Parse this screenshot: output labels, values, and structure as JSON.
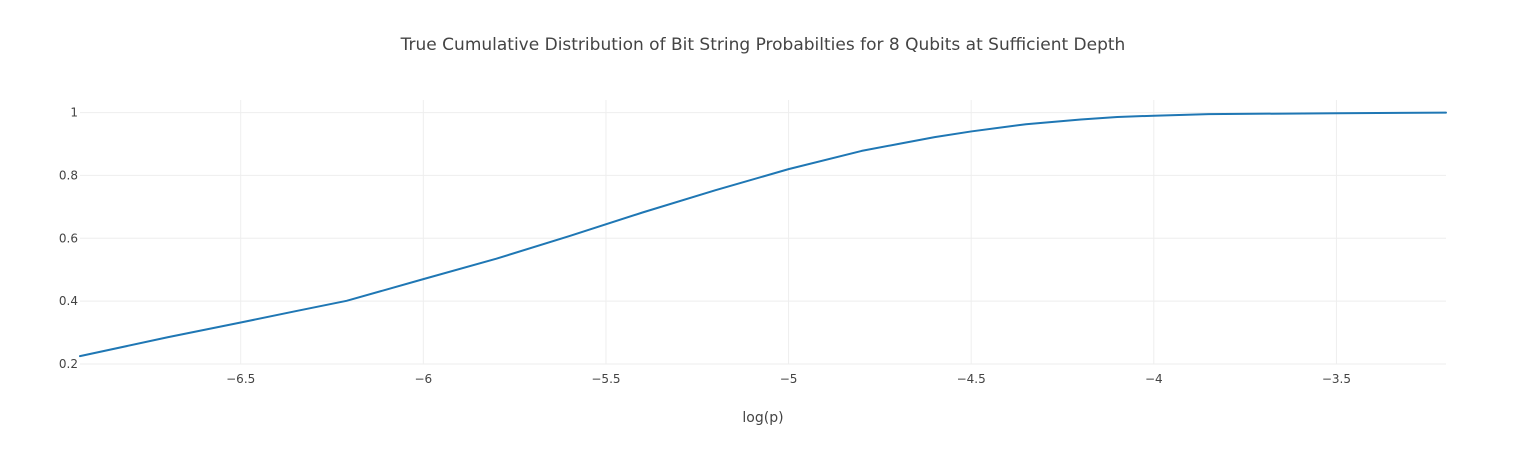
{
  "chart_data": {
    "type": "line",
    "title": "True Cumulative Distribution of Bit String Probabilties for 8 Qubits at Sufficient Depth",
    "xlabel": "log(p)",
    "ylabel": "",
    "xlim": [
      -6.94,
      -3.2
    ],
    "ylim": [
      0.2,
      1.04
    ],
    "grid": true,
    "x_ticks": [
      -6.5,
      -6,
      -5.5,
      -5,
      -4.5,
      -4,
      -3.5
    ],
    "x_tick_labels": [
      "−6.5",
      "−6",
      "−5.5",
      "−5",
      "−4.5",
      "−4",
      "−3.5"
    ],
    "y_ticks": [
      0.2,
      0.4,
      0.6,
      0.8,
      1
    ],
    "y_tick_labels": [
      "0.2",
      "0.4",
      "0.6",
      "0.8",
      "1"
    ],
    "series": [
      {
        "color": "#1f77b4",
        "x": [
          -6.94,
          -6.7,
          -6.5,
          -6.35,
          -6.21,
          -6.0,
          -5.8,
          -5.6,
          -5.4,
          -5.2,
          -5.0,
          -4.8,
          -4.7,
          -4.6,
          -4.5,
          -4.35,
          -4.2,
          -4.1,
          -4.0,
          -3.85,
          -3.5,
          -3.2
        ],
        "y": [
          0.225,
          0.285,
          0.332,
          0.368,
          0.401,
          0.47,
          0.535,
          0.607,
          0.682,
          0.753,
          0.82,
          0.878,
          0.9,
          0.922,
          0.94,
          0.963,
          0.978,
          0.986,
          0.99,
          0.995,
          0.998,
          1.0
        ]
      }
    ]
  }
}
